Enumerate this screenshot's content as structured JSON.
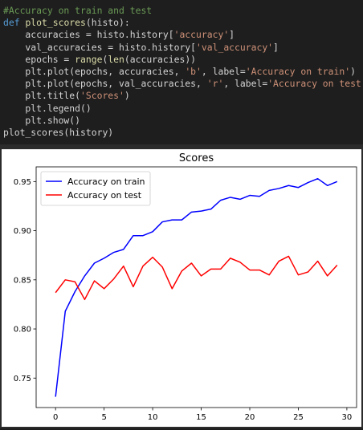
{
  "code": {
    "lines": [
      [
        {
          "t": "#Accuracy on train and test",
          "c": "comment"
        }
      ],
      [
        {
          "t": "def ",
          "c": "kw"
        },
        {
          "t": "plot_scores",
          "c": "fn"
        },
        {
          "t": "(histo):",
          "c": "plain"
        }
      ],
      [
        {
          "t": "    accuracies = histo.history[",
          "c": "plain"
        },
        {
          "t": "'accuracy'",
          "c": "str"
        },
        {
          "t": "]",
          "c": "plain"
        }
      ],
      [
        {
          "t": "    val_accuracies = histo.history[",
          "c": "plain"
        },
        {
          "t": "'val_accuracy'",
          "c": "str"
        },
        {
          "t": "]",
          "c": "plain"
        }
      ],
      [
        {
          "t": "    epochs = ",
          "c": "plain"
        },
        {
          "t": "range",
          "c": "fn"
        },
        {
          "t": "(",
          "c": "plain"
        },
        {
          "t": "len",
          "c": "fn"
        },
        {
          "t": "(accuracies))",
          "c": "plain"
        }
      ],
      [
        {
          "t": "    plt.plot(epochs, accuracies, ",
          "c": "plain"
        },
        {
          "t": "'b'",
          "c": "str"
        },
        {
          "t": ", label=",
          "c": "plain"
        },
        {
          "t": "'Accuracy on train'",
          "c": "str"
        },
        {
          "t": ")",
          "c": "plain"
        }
      ],
      [
        {
          "t": "    plt.plot(epochs, val_accuracies, ",
          "c": "plain"
        },
        {
          "t": "'r'",
          "c": "str"
        },
        {
          "t": ", label=",
          "c": "plain"
        },
        {
          "t": "'Accuracy on test'",
          "c": "str"
        },
        {
          "t": ")",
          "c": "plain"
        }
      ],
      [
        {
          "t": "    plt.title(",
          "c": "plain"
        },
        {
          "t": "'Scores'",
          "c": "str"
        },
        {
          "t": ")",
          "c": "plain"
        }
      ],
      [
        {
          "t": "    plt.legend()",
          "c": "plain"
        }
      ],
      [
        {
          "t": "    plt.show()",
          "c": "plain"
        }
      ],
      [
        {
          "t": "plot_scores(history)",
          "c": "plain"
        }
      ]
    ]
  },
  "chart_data": {
    "type": "line",
    "title": "Scores",
    "xlabel": "",
    "ylabel": "",
    "xlim": [
      -2,
      31
    ],
    "ylim": [
      0.72,
      0.965
    ],
    "xticks": [
      0,
      5,
      10,
      15,
      20,
      25,
      30
    ],
    "yticks": [
      0.75,
      0.8,
      0.85,
      0.9,
      0.95
    ],
    "grid": false,
    "legend_position": "top-left",
    "x": [
      0,
      1,
      2,
      3,
      4,
      5,
      6,
      7,
      8,
      9,
      10,
      11,
      12,
      13,
      14,
      15,
      16,
      17,
      18,
      19,
      20,
      21,
      22,
      23,
      24,
      25,
      26,
      27,
      28,
      29
    ],
    "series": [
      {
        "name": "Accuracy on train",
        "color": "#0000ff",
        "values": [
          0.731,
          0.818,
          0.838,
          0.854,
          0.867,
          0.872,
          0.878,
          0.881,
          0.895,
          0.895,
          0.899,
          0.909,
          0.911,
          0.911,
          0.919,
          0.92,
          0.922,
          0.931,
          0.934,
          0.932,
          0.936,
          0.935,
          0.941,
          0.943,
          0.946,
          0.944,
          0.949,
          0.953,
          0.946,
          0.95
        ]
      },
      {
        "name": "Accuracy on test",
        "color": "#ff0000",
        "values": [
          0.837,
          0.85,
          0.848,
          0.83,
          0.849,
          0.841,
          0.851,
          0.864,
          0.843,
          0.864,
          0.873,
          0.863,
          0.841,
          0.859,
          0.867,
          0.854,
          0.861,
          0.861,
          0.872,
          0.868,
          0.86,
          0.86,
          0.855,
          0.869,
          0.874,
          0.855,
          0.858,
          0.869,
          0.854,
          0.865
        ]
      }
    ]
  }
}
